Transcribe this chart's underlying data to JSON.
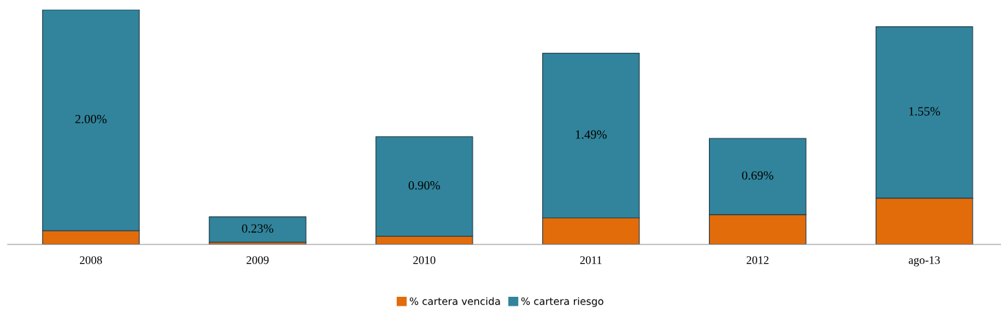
{
  "chart_data": {
    "type": "bar",
    "stacked": true,
    "categories": [
      "2008",
      "2009",
      "2010",
      "2011",
      "2012",
      "ago-13"
    ],
    "series": [
      {
        "name": "% cartera vencida",
        "color": "#e36c0a",
        "values": [
          0.125,
          0.02,
          0.075,
          0.24,
          0.27,
          0.42
        ]
      },
      {
        "name": "% cartera riesgo",
        "color": "#31849b",
        "values": [
          2.0,
          0.23,
          0.9,
          1.49,
          0.69,
          1.55
        ],
        "value_labels": [
          "2.00%",
          "0.23%",
          "0.90%",
          "1.49%",
          "0.69%",
          "1.55%"
        ]
      }
    ],
    "legend": "bottom",
    "grid": false
  }
}
